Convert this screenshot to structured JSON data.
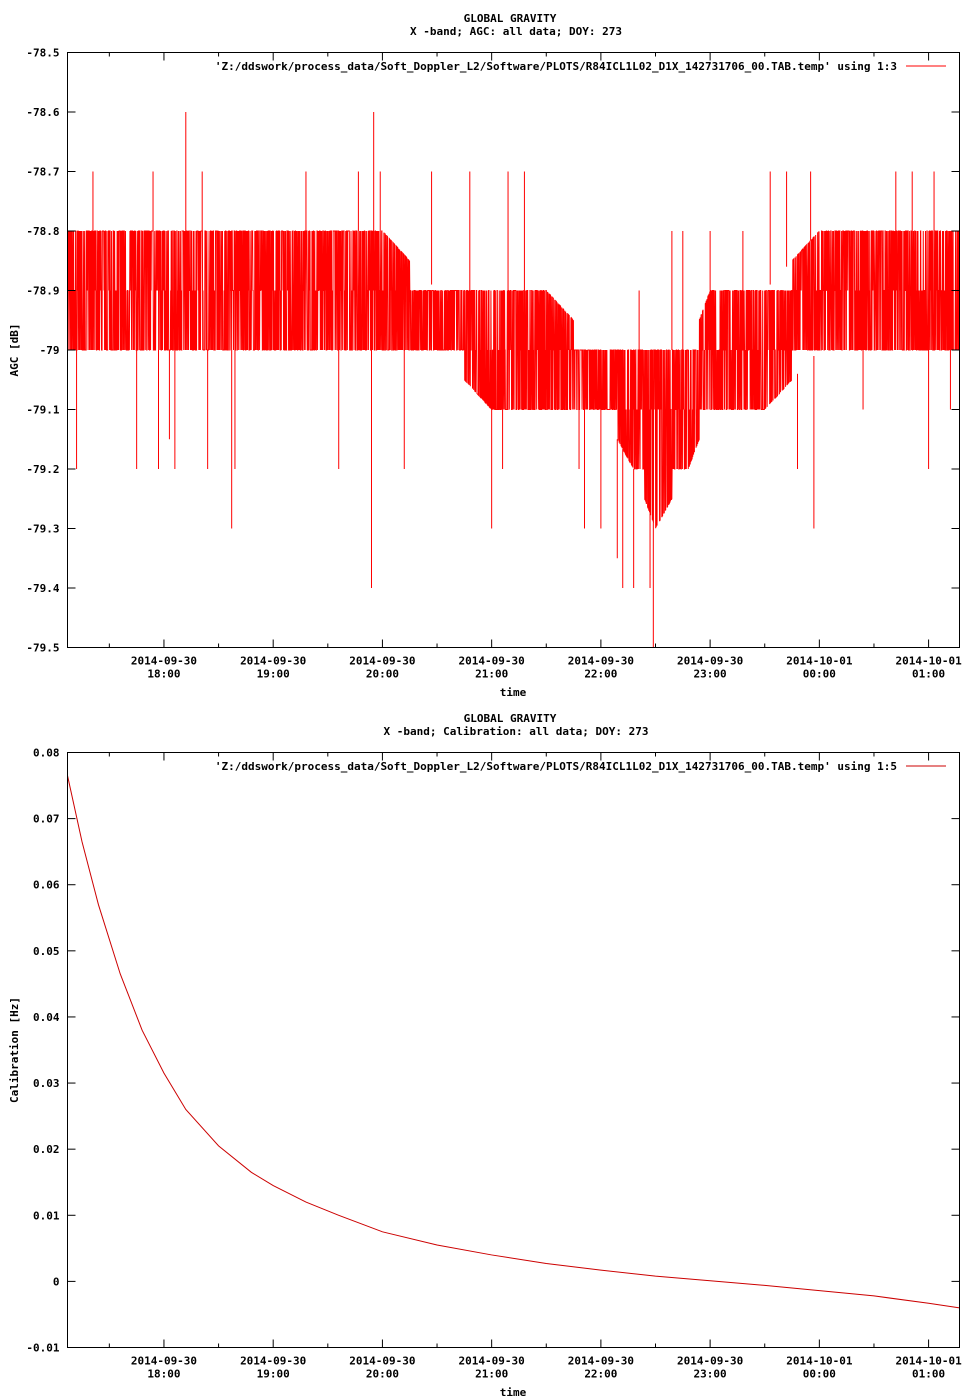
{
  "chart_data": [
    {
      "type": "line",
      "title": "GLOBAL GRAVITY",
      "subtitle": "X -band; AGC: all data; DOY: 273",
      "xlabel": "time",
      "ylabel": "AGC [dB]",
      "ylim": [
        -79.5,
        -78.5
      ],
      "yticks": [
        -78.5,
        -78.6,
        -78.7,
        -78.8,
        -78.9,
        -79,
        -79.1,
        -79.2,
        -79.3,
        -79.4,
        -79.5
      ],
      "xlim": [
        17.117,
        25.283
      ],
      "xticks": [
        {
          "x": 18,
          "date": "2014-09-30",
          "time": "18:00"
        },
        {
          "x": 19,
          "date": "2014-09-30",
          "time": "19:00"
        },
        {
          "x": 20,
          "date": "2014-09-30",
          "time": "20:00"
        },
        {
          "x": 21,
          "date": "2014-09-30",
          "time": "21:00"
        },
        {
          "x": 22,
          "date": "2014-09-30",
          "time": "22:00"
        },
        {
          "x": 23,
          "date": "2014-09-30",
          "time": "23:00"
        },
        {
          "x": 24,
          "date": "2014-10-01",
          "time": "00:00"
        },
        {
          "x": 25,
          "date": "2014-10-01",
          "time": "01:00"
        }
      ],
      "grid": false,
      "legend_position": "top-right",
      "series": [
        {
          "name": "'Z:/ddswork/process_data/Soft_Doppler_L2/Software/PLOTS/R84ICL1L02_D1X_142731706_00.TAB.temp' using 1:3",
          "color": "#ff0000",
          "band": {
            "x": [
              17.12,
              17.5,
              18.0,
              18.5,
              19.0,
              19.5,
              20.0,
              20.5,
              21.0,
              21.5,
              22.0,
              22.3,
              22.5,
              22.8,
              23.0,
              23.5,
              24.0,
              24.5,
              25.0,
              25.28
            ],
            "low": [
              -79.0,
              -79.0,
              -79.0,
              -79.0,
              -79.0,
              -79.0,
              -79.0,
              -79.0,
              -79.1,
              -79.1,
              -79.1,
              -79.2,
              -79.3,
              -79.2,
              -79.1,
              -79.1,
              -79.0,
              -79.0,
              -79.0,
              -79.0
            ],
            "high": [
              -78.8,
              -78.8,
              -78.8,
              -78.8,
              -78.8,
              -78.8,
              -78.8,
              -78.9,
              -78.9,
              -78.9,
              -79.0,
              -79.0,
              -79.0,
              -79.0,
              -78.9,
              -78.9,
              -78.8,
              -78.8,
              -78.8,
              -78.8
            ]
          },
          "spikes": [
            {
              "x": 17.2,
              "y": -79.2
            },
            {
              "x": 17.35,
              "y": -78.7
            },
            {
              "x": 17.75,
              "y": -79.2
            },
            {
              "x": 17.9,
              "y": -78.7
            },
            {
              "x": 17.95,
              "y": -79.2
            },
            {
              "x": 18.05,
              "y": -79.15
            },
            {
              "x": 18.1,
              "y": -79.2
            },
            {
              "x": 18.2,
              "y": -78.6
            },
            {
              "x": 18.35,
              "y": -78.7
            },
            {
              "x": 18.4,
              "y": -79.2
            },
            {
              "x": 18.62,
              "y": -79.3
            },
            {
              "x": 18.65,
              "y": -79.2
            },
            {
              "x": 19.3,
              "y": -78.7
            },
            {
              "x": 19.6,
              "y": -79.2
            },
            {
              "x": 19.78,
              "y": -78.7
            },
            {
              "x": 19.9,
              "y": -79.4
            },
            {
              "x": 19.92,
              "y": -78.6
            },
            {
              "x": 19.98,
              "y": -78.7
            },
            {
              "x": 20.2,
              "y": -79.2
            },
            {
              "x": 20.45,
              "y": -78.7
            },
            {
              "x": 20.8,
              "y": -78.7
            },
            {
              "x": 21.0,
              "y": -79.3
            },
            {
              "x": 21.1,
              "y": -79.2
            },
            {
              "x": 21.15,
              "y": -78.7
            },
            {
              "x": 21.3,
              "y": -78.7
            },
            {
              "x": 21.8,
              "y": -79.2
            },
            {
              "x": 21.85,
              "y": -79.3
            },
            {
              "x": 22.0,
              "y": -79.3
            },
            {
              "x": 22.15,
              "y": -79.35
            },
            {
              "x": 22.2,
              "y": -79.4
            },
            {
              "x": 22.3,
              "y": -79.4
            },
            {
              "x": 22.35,
              "y": -78.9
            },
            {
              "x": 22.45,
              "y": -79.4
            },
            {
              "x": 22.48,
              "y": -79.5
            },
            {
              "x": 22.65,
              "y": -78.8
            },
            {
              "x": 22.75,
              "y": -78.8
            },
            {
              "x": 23.0,
              "y": -78.8
            },
            {
              "x": 23.3,
              "y": -78.8
            },
            {
              "x": 23.55,
              "y": -78.7
            },
            {
              "x": 23.7,
              "y": -78.7
            },
            {
              "x": 23.8,
              "y": -79.2
            },
            {
              "x": 23.92,
              "y": -78.7
            },
            {
              "x": 23.95,
              "y": -79.3
            },
            {
              "x": 24.4,
              "y": -79.1
            },
            {
              "x": 24.7,
              "y": -78.7
            },
            {
              "x": 24.85,
              "y": -78.7
            },
            {
              "x": 25.0,
              "y": -79.2
            },
            {
              "x": 25.05,
              "y": -78.7
            },
            {
              "x": 25.2,
              "y": -79.1
            }
          ]
        }
      ]
    },
    {
      "type": "line",
      "title": "GLOBAL GRAVITY",
      "subtitle": "X -band; Calibration: all data; DOY: 273",
      "xlabel": "time",
      "ylabel": "Calibration [Hz]",
      "ylim": [
        -0.01,
        0.08
      ],
      "yticks": [
        0.08,
        0.07,
        0.06,
        0.05,
        0.04,
        0.03,
        0.02,
        0.01,
        0,
        -0.01
      ],
      "xlim": [
        17.117,
        25.283
      ],
      "xticks": [
        {
          "x": 18,
          "date": "2014-09-30",
          "time": "18:00"
        },
        {
          "x": 19,
          "date": "2014-09-30",
          "time": "19:00"
        },
        {
          "x": 20,
          "date": "2014-09-30",
          "time": "20:00"
        },
        {
          "x": 21,
          "date": "2014-09-30",
          "time": "21:00"
        },
        {
          "x": 22,
          "date": "2014-09-30",
          "time": "22:00"
        },
        {
          "x": 23,
          "date": "2014-09-30",
          "time": "23:00"
        },
        {
          "x": 24,
          "date": "2014-10-01",
          "time": "00:00"
        },
        {
          "x": 25,
          "date": "2014-10-01",
          "time": "01:00"
        }
      ],
      "grid": false,
      "legend_position": "top-right",
      "series": [
        {
          "name": "'Z:/ddswork/process_data/Soft_Doppler_L2/Software/PLOTS/R84ICL1L02_D1X_142731706_00.TAB.temp' using 1:5",
          "color": "#cc0000",
          "x": [
            17.117,
            17.25,
            17.4,
            17.6,
            17.8,
            18.0,
            18.2,
            18.5,
            18.8,
            19.0,
            19.3,
            19.6,
            20.0,
            20.5,
            21.0,
            21.5,
            22.0,
            22.5,
            23.0,
            23.5,
            24.0,
            24.5,
            25.0,
            25.283
          ],
          "y": [
            0.0765,
            0.0665,
            0.057,
            0.0465,
            0.038,
            0.0315,
            0.026,
            0.0205,
            0.0165,
            0.0145,
            0.012,
            0.01,
            0.0075,
            0.0055,
            0.004,
            0.0027,
            0.0017,
            0.0008,
            0.0001,
            -0.0006,
            -0.0014,
            -0.0022,
            -0.0033,
            -0.004
          ]
        }
      ]
    }
  ]
}
